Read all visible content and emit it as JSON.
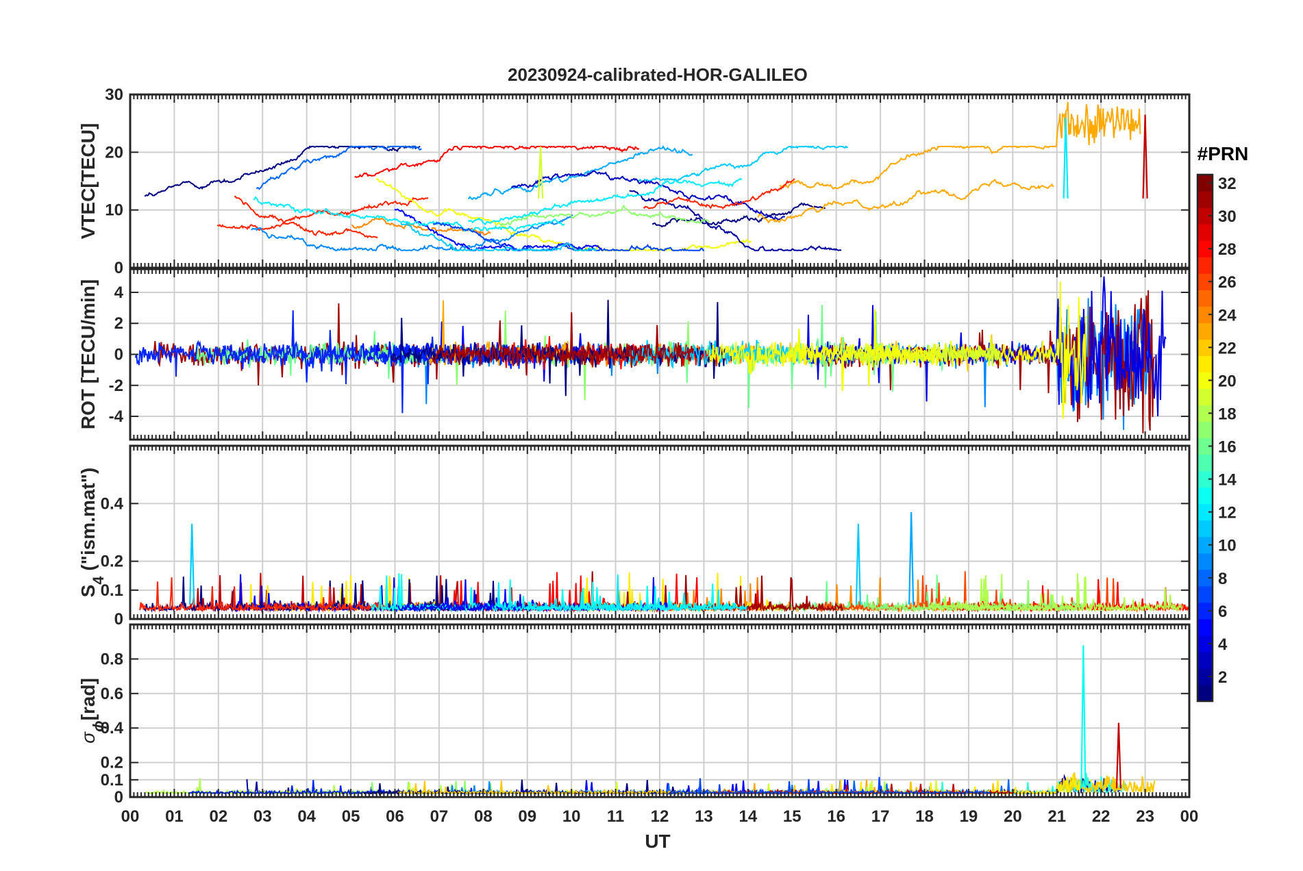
{
  "title": "20230924-calibrated-HOR-GALILEO",
  "colors": {
    "axis": "#262626",
    "grid": "#cfcfcf",
    "series_palette": [
      "#00007f",
      "#0000ff",
      "#007fff",
      "#00ffff",
      "#7fff7f",
      "#ffff00",
      "#ff7f00",
      "#ff0000",
      "#7f0000"
    ]
  },
  "chart_data": [
    {
      "id": "vtec",
      "type": "line",
      "ylabel": "VTEC[TECU]",
      "ylim": [
        0,
        30
      ],
      "yticks": [
        0,
        10,
        20,
        30
      ],
      "series_hint": "multiple satellite tracks (PRN colored)",
      "sample_peaks": [
        {
          "x_hour": 21.2,
          "y": 26,
          "prn": 12
        },
        {
          "x_hour": 23.0,
          "y": 26.5,
          "prn": 30
        },
        {
          "x_hour": 9.3,
          "y": 21,
          "prn": 19
        }
      ]
    },
    {
      "id": "rot",
      "type": "line",
      "ylabel": "ROT [TECU/min]",
      "ylim": [
        -5.5,
        5.5
      ],
      "yticks": [
        -4,
        -2,
        0,
        2,
        4
      ],
      "series_hint": "rate of TEC, strong activity after 21 UT"
    },
    {
      "id": "s4",
      "type": "line",
      "ylabel": "S",
      "ylabel_sub": "4",
      "ylabel_tail": " (\"ism.mat\")",
      "ylim": [
        0,
        0.6
      ],
      "yticks": [
        0,
        0.1,
        0.2,
        0.4
      ],
      "ytick_labels": [
        "0",
        "0.1",
        "0.2",
        "0.4"
      ],
      "sample_peaks": [
        {
          "x_hour": 17.7,
          "y": 0.37,
          "prn": 10
        },
        {
          "x_hour": 1.4,
          "y": 0.33,
          "prn": 11
        },
        {
          "x_hour": 16.5,
          "y": 0.33,
          "prn": 11
        }
      ]
    },
    {
      "id": "sigma_phi",
      "type": "line",
      "ylabel": "σ",
      "ylabel_sub": "ϕ",
      "ylabel_tail": "[rad]",
      "ylim": [
        0,
        1.0
      ],
      "yticks": [
        0,
        0.1,
        0.2,
        0.4,
        0.6,
        0.8
      ],
      "ytick_labels": [
        "0",
        "0.1",
        "0.2",
        "0.4",
        "0.6",
        "0.8"
      ],
      "sample_peaks": [
        {
          "x_hour": 21.6,
          "y": 0.88,
          "prn": 13
        },
        {
          "x_hour": 22.4,
          "y": 0.43,
          "prn": 30
        }
      ]
    }
  ],
  "x_axis": {
    "label": "UT",
    "range_hours": [
      0,
      24
    ],
    "tick_labels": [
      "00",
      "01",
      "02",
      "03",
      "04",
      "05",
      "06",
      "07",
      "08",
      "09",
      "10",
      "11",
      "12",
      "13",
      "14",
      "15",
      "16",
      "17",
      "18",
      "19",
      "20",
      "21",
      "22",
      "23",
      "00"
    ]
  },
  "colorbar": {
    "title": "#PRN",
    "range": [
      1,
      32
    ],
    "tick_labels": [
      "2",
      "4",
      "6",
      "8",
      "10",
      "12",
      "14",
      "16",
      "18",
      "20",
      "22",
      "24",
      "26",
      "28",
      "30",
      "32"
    ],
    "tick_values": [
      2,
      4,
      6,
      8,
      10,
      12,
      14,
      16,
      18,
      20,
      22,
      24,
      26,
      28,
      30,
      32
    ]
  }
}
